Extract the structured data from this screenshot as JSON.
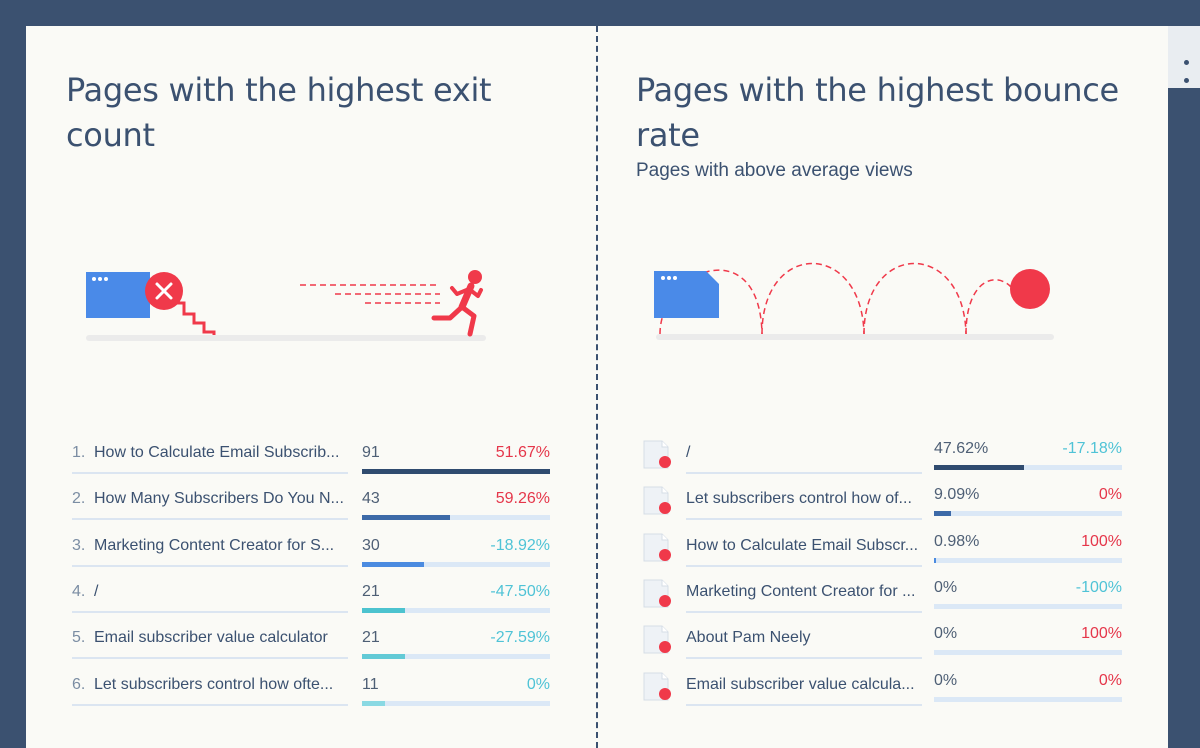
{
  "left": {
    "title": "Pages with the highest exit count",
    "rows": [
      {
        "rank": "1.",
        "label": "How to Calculate Email Subscrib...",
        "value": "91",
        "change": "51.67%",
        "fill": 1.0,
        "color": "#2f4b6f",
        "trend": "pos"
      },
      {
        "rank": "2.",
        "label": "How Many Subscribers Do You N...",
        "value": "43",
        "change": "59.26%",
        "fill": 0.47,
        "color": "#3d6aa8",
        "trend": "pos"
      },
      {
        "rank": "3.",
        "label": "Marketing Content Creator for S...",
        "value": "30",
        "change": "-18.92%",
        "fill": 0.33,
        "color": "#4b8be0",
        "trend": "neg"
      },
      {
        "rank": "4.",
        "label": "/",
        "value": "21",
        "change": "-47.50%",
        "fill": 0.23,
        "color": "#4cc3cf",
        "trend": "neg"
      },
      {
        "rank": "5.",
        "label": "Email subscriber value calculator",
        "value": "21",
        "change": "-27.59%",
        "fill": 0.23,
        "color": "#62cad6",
        "trend": "neg"
      },
      {
        "rank": "6.",
        "label": "Let subscribers control how ofte...",
        "value": "11",
        "change": "0%",
        "fill": 0.12,
        "color": "#8ad9e3",
        "trend": "neg"
      }
    ]
  },
  "right": {
    "title": "Pages with the highest bounce rate",
    "subtitle": "Pages with above average views",
    "rows": [
      {
        "label": "/",
        "value": "47.62%",
        "change": "-17.18%",
        "fill": 0.48,
        "color": "#2f4b6f",
        "trend": "neg"
      },
      {
        "label": "Let subscribers control how of...",
        "value": "9.09%",
        "change": "0%",
        "fill": 0.09,
        "color": "#3d6aa8",
        "trend": "pos"
      },
      {
        "label": "How to Calculate Email Subscr...",
        "value": "0.98%",
        "change": "100%",
        "fill": 0.01,
        "color": "#4b8be0",
        "trend": "pos"
      },
      {
        "label": "Marketing Content Creator for ...",
        "value": "0%",
        "change": "-100%",
        "fill": 0.0,
        "color": "#4cc3cf",
        "trend": "neg"
      },
      {
        "label": "About Pam Neely",
        "value": "0%",
        "change": "100%",
        "fill": 0.0,
        "color": "#62cad6",
        "trend": "pos"
      },
      {
        "label": "Email subscriber value calcula...",
        "value": "0%",
        "change": "0%",
        "fill": 0.0,
        "color": "#8ad9e3",
        "trend": "pos"
      }
    ]
  },
  "colors": {
    "accent_red": "#f0394a",
    "browser_blue": "#4a8ae8",
    "navy": "#3b5170",
    "cyan": "#4fc3d6"
  },
  "icons": {
    "exit_illustration": "page-exit-runner",
    "bounce_illustration": "page-bouncing-ball",
    "row_icon": "document-with-dot-icon",
    "side": "more-dots-icon"
  }
}
